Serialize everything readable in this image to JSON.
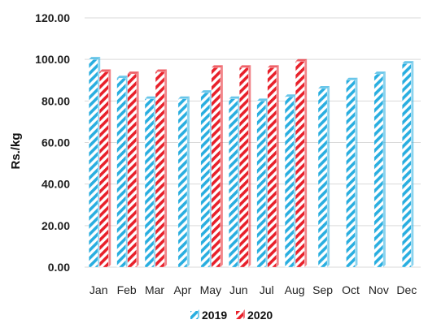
{
  "chart_data": {
    "type": "bar",
    "title": "",
    "xlabel": "",
    "ylabel": "Rs./kg",
    "ylim": [
      0,
      120
    ],
    "y_ticks": [
      "0.00",
      "20.00",
      "40.00",
      "60.00",
      "80.00",
      "100.00",
      "120.00"
    ],
    "y_tick_values": [
      0,
      20,
      40,
      60,
      80,
      100,
      120
    ],
    "grid": true,
    "legend_position": "bottom",
    "categories": [
      "Jan",
      "Feb",
      "Mar",
      "Apr",
      "May",
      "Jun",
      "Jul",
      "Aug",
      "Sep",
      "Oct",
      "Nov",
      "Dec"
    ],
    "series": [
      {
        "name": "2019",
        "color": "#29aee0",
        "values": [
          100,
          91,
          81,
          81,
          84,
          81,
          80,
          82,
          86,
          90,
          93,
          98
        ]
      },
      {
        "name": "2020",
        "color": "#e8202a",
        "values": [
          94,
          93,
          94,
          null,
          96,
          96,
          96,
          99,
          null,
          null,
          null,
          null
        ]
      }
    ]
  }
}
